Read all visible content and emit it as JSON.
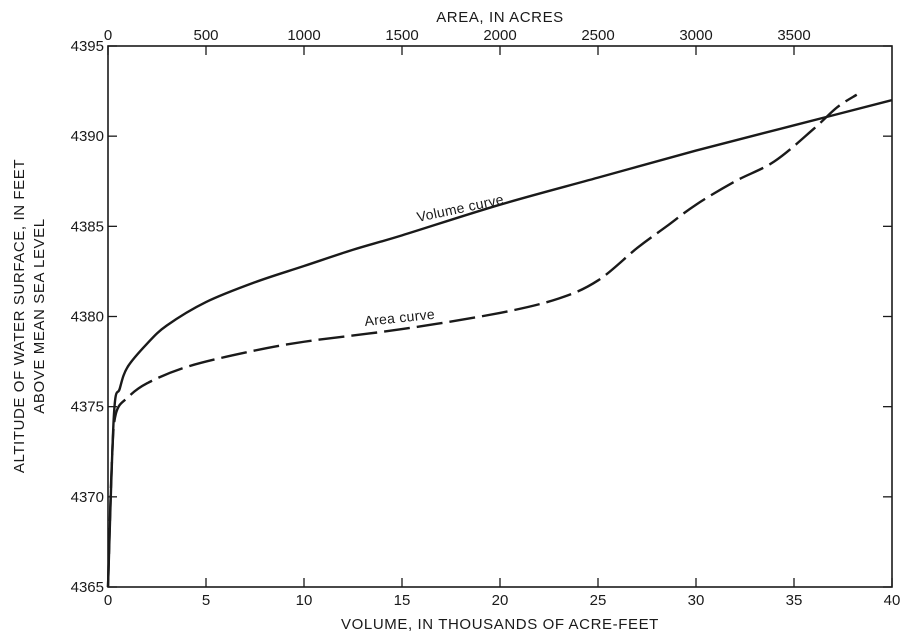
{
  "chart_data": {
    "type": "line",
    "title": "",
    "xlabel": "VOLUME, IN THOUSANDS OF ACRE-FEET",
    "x2label": "AREA, IN ACRES",
    "ylabel_line1": "ALTITUDE OF WATER SURFACE, IN FEET",
    "ylabel_line2": "ABOVE MEAN SEA LEVEL",
    "xlim": [
      0,
      40
    ],
    "x2lim": [
      0,
      4000
    ],
    "ylim": [
      4365,
      4395
    ],
    "x_ticks": [
      "0",
      "5",
      "10",
      "15",
      "20",
      "25",
      "30",
      "35",
      "40"
    ],
    "x2_ticks": [
      "0",
      "500",
      "1000",
      "1500",
      "2000",
      "2500",
      "3000",
      "3500"
    ],
    "y_ticks": [
      "4365",
      "4370",
      "4375",
      "4380",
      "4385",
      "4390",
      "4395"
    ],
    "grid": false,
    "series": [
      {
        "name": "Volume curve",
        "axis": "bottom",
        "style": "solid",
        "points": [
          [
            0,
            4365
          ],
          [
            0.3,
            4374.5
          ],
          [
            0.6,
            4376
          ],
          [
            1,
            4377.2
          ],
          [
            2,
            4378.5
          ],
          [
            3,
            4379.5
          ],
          [
            5,
            4380.8
          ],
          [
            7.5,
            4381.9
          ],
          [
            10,
            4382.8
          ],
          [
            12.5,
            4383.7
          ],
          [
            15,
            4384.5
          ],
          [
            20,
            4386.2
          ],
          [
            25,
            4387.7
          ],
          [
            30,
            4389.2
          ],
          [
            35,
            4390.6
          ],
          [
            40,
            4392
          ]
        ]
      },
      {
        "name": "Area curve",
        "axis": "top",
        "style": "dashed",
        "points": [
          [
            0,
            4365
          ],
          [
            20,
            4372
          ],
          [
            40,
            4374.6
          ],
          [
            100,
            4375.5
          ],
          [
            200,
            4376.3
          ],
          [
            400,
            4377.2
          ],
          [
            700,
            4378
          ],
          [
            1000,
            4378.6
          ],
          [
            1500,
            4379.3
          ],
          [
            2000,
            4380.2
          ],
          [
            2300,
            4381
          ],
          [
            2500,
            4382
          ],
          [
            2700,
            4383.8
          ],
          [
            2850,
            4385
          ],
          [
            3000,
            4386.2
          ],
          [
            3200,
            4387.5
          ],
          [
            3400,
            4388.6
          ],
          [
            3600,
            4390.4
          ],
          [
            3720,
            4391.6
          ],
          [
            3820,
            4392.3
          ]
        ]
      }
    ],
    "annotations": [
      {
        "text": "Volume curve",
        "series": 0
      },
      {
        "text": "Area curve",
        "series": 1
      }
    ]
  }
}
